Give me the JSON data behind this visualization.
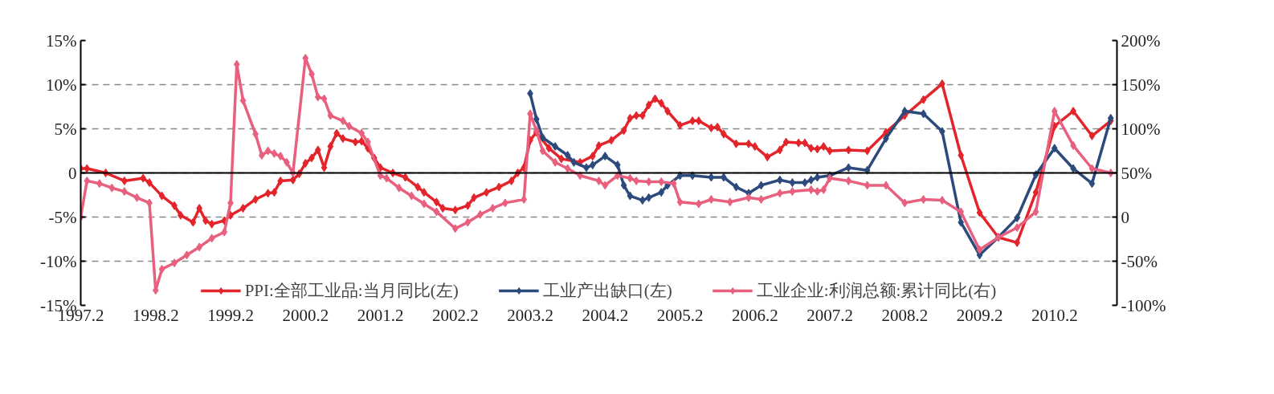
{
  "chart_data": {
    "type": "line",
    "marker": "diamond",
    "line_style": "solid",
    "grid": "y",
    "legend": "bottom",
    "xlim": [
      "1997-02",
      "2010-12"
    ],
    "xticks": [
      {
        "value": "1997-02",
        "label": "1997.2"
      },
      {
        "value": "1998-02",
        "label": "1998.2"
      },
      {
        "value": "1999-02",
        "label": "1999.2"
      },
      {
        "value": "2000-02",
        "label": "2000.2"
      },
      {
        "value": "2001-02",
        "label": "2001.2"
      },
      {
        "value": "2002-02",
        "label": "2002.2"
      },
      {
        "value": "2003-02",
        "label": "2003.2"
      },
      {
        "value": "2004-02",
        "label": "2004.2"
      },
      {
        "value": "2005-02",
        "label": "2005.2"
      },
      {
        "value": "2006-02",
        "label": "2006.2"
      },
      {
        "value": "2007-02",
        "label": "2007.2"
      },
      {
        "value": "2008-02",
        "label": "2008.2"
      },
      {
        "value": "2009-02",
        "label": "2009.2"
      },
      {
        "value": "2010-02",
        "label": "2010.2"
      }
    ],
    "ylim": [
      -15,
      15
    ],
    "yticks": [
      {
        "value": -15,
        "label": "-15%"
      },
      {
        "value": -10,
        "label": "-10%"
      },
      {
        "value": -5,
        "label": "-5%"
      },
      0,
      {
        "value": 5,
        "label": "5%"
      },
      {
        "value": 10,
        "label": "10%"
      },
      {
        "value": 15,
        "label": "15%"
      }
    ],
    "y2lim": [
      -100,
      200
    ],
    "y2ticks": [
      {
        "value": -100,
        "label": "-100%"
      },
      {
        "value": -50,
        "label": "-50%"
      },
      0,
      {
        "value": 50,
        "label": "50%"
      },
      {
        "value": 100,
        "label": "100%"
      },
      {
        "value": 150,
        "label": "150%"
      },
      {
        "value": 200,
        "label": "200%"
      }
    ],
    "ref_lines": [
      {
        "axis": "y",
        "value": 0,
        "color": "#000000"
      }
    ],
    "series": [
      {
        "name": "PPI:全部工业品:当月同比(左)",
        "color": "#e3242b",
        "axis": "y",
        "x": [
          "1997-02",
          "1997-03",
          "1997-06",
          "1997-09",
          "1997-12",
          "1998-01",
          "1998-03",
          "1998-05",
          "1998-06",
          "1998-08",
          "1998-09",
          "1998-10",
          "1998-11",
          "1999-01",
          "1999-02",
          "1999-04",
          "1999-06",
          "1999-08",
          "1999-09",
          "1999-10",
          "1999-12",
          "2000-01",
          "2000-02",
          "2000-03",
          "2000-04",
          "2000-05",
          "2000-06",
          "2000-07",
          "2000-08",
          "2000-10",
          "2000-11",
          "2000-12",
          "2001-01",
          "2001-02",
          "2001-04",
          "2001-06",
          "2001-08",
          "2001-09",
          "2001-11",
          "2001-12",
          "2002-02",
          "2002-04",
          "2002-05",
          "2002-07",
          "2002-09",
          "2002-11",
          "2002-12",
          "2003-01",
          "2003-02",
          "2003-03",
          "2003-05",
          "2003-07",
          "2003-10",
          "2003-12",
          "2004-01",
          "2004-03",
          "2004-05",
          "2004-06",
          "2004-07",
          "2004-08",
          "2004-09",
          "2004-10",
          "2004-11",
          "2004-12",
          "2005-02",
          "2005-04",
          "2005-05",
          "2005-07",
          "2005-08",
          "2005-09",
          "2005-11",
          "2006-01",
          "2006-02",
          "2006-04",
          "2006-06",
          "2006-07",
          "2006-09",
          "2006-10",
          "2006-11",
          "2006-12",
          "2007-01",
          "2007-02",
          "2007-05",
          "2007-08",
          "2007-11",
          "2008-02",
          "2008-05",
          "2008-08",
          "2008-11",
          "2009-02",
          "2009-05",
          "2009-08",
          "2009-11",
          "2010-02",
          "2010-05",
          "2010-08",
          "2010-11"
        ],
        "values": [
          0.5,
          0.5,
          0.0,
          -0.9,
          -0.6,
          -1.1,
          -2.6,
          -3.7,
          -4.8,
          -5.6,
          -4.0,
          -5.4,
          -5.8,
          -5.4,
          -4.8,
          -4.0,
          -3.0,
          -2.3,
          -2.2,
          -0.9,
          -0.8,
          -0.1,
          1.1,
          1.7,
          2.6,
          0.6,
          3.0,
          4.5,
          3.9,
          3.5,
          3.6,
          2.8,
          1.7,
          0.6,
          0.0,
          -0.5,
          -1.6,
          -2.2,
          -3.3,
          -4.0,
          -4.2,
          -3.7,
          -2.8,
          -2.2,
          -1.6,
          -0.9,
          0.0,
          0.6,
          3.7,
          4.6,
          2.8,
          1.6,
          1.2,
          1.9,
          3.1,
          3.7,
          4.8,
          6.2,
          6.5,
          6.5,
          7.7,
          8.4,
          7.9,
          7.0,
          5.4,
          5.9,
          5.9,
          5.1,
          5.2,
          4.4,
          3.3,
          3.3,
          3.0,
          1.8,
          2.6,
          3.5,
          3.4,
          3.4,
          2.8,
          2.7,
          3.0,
          2.5,
          2.6,
          2.5,
          4.6,
          6.5,
          8.3,
          10.1,
          2.0,
          -4.5,
          -7.3,
          -7.9,
          -2.2,
          5.3,
          7.0,
          4.2,
          5.9
        ]
      },
      {
        "name": "工业产出缺口(左)",
        "color": "#2c4a7c",
        "axis": "y",
        "x": [
          "2003-02",
          "2003-03",
          "2003-04",
          "2003-06",
          "2003-08",
          "2003-09",
          "2003-11",
          "2003-12",
          "2004-02",
          "2004-04",
          "2004-05",
          "2004-06",
          "2004-08",
          "2004-09",
          "2004-11",
          "2004-12",
          "2005-02",
          "2005-04",
          "2005-07",
          "2005-09",
          "2005-11",
          "2006-01",
          "2006-03",
          "2006-06",
          "2006-08",
          "2006-10",
          "2006-11",
          "2006-12",
          "2007-02",
          "2007-05",
          "2007-08",
          "2007-11",
          "2008-02",
          "2008-05",
          "2008-08",
          "2008-11",
          "2009-02",
          "2009-05",
          "2009-08",
          "2009-11",
          "2010-02",
          "2010-05",
          "2010-08",
          "2010-11"
        ],
        "values": [
          9.0,
          6.1,
          4.0,
          3.0,
          2.0,
          1.2,
          0.6,
          0.9,
          1.9,
          0.9,
          -1.4,
          -2.6,
          -3.1,
          -2.8,
          -2.2,
          -1.4,
          -0.3,
          -0.3,
          -0.5,
          -0.5,
          -1.6,
          -2.3,
          -1.4,
          -0.8,
          -1.1,
          -1.1,
          -0.8,
          -0.5,
          -0.3,
          0.6,
          0.3,
          3.9,
          7.0,
          6.7,
          4.7,
          -5.6,
          -9.3,
          -7.3,
          -5.1,
          -0.2,
          2.8,
          0.5,
          -1.2,
          6.2
        ]
      },
      {
        "name": "工业企业:利润总额:累计同比(右)",
        "color": "#e8607e",
        "axis": "y2",
        "x": [
          "1997-02",
          "1997-03",
          "1997-05",
          "1997-07",
          "1997-09",
          "1997-11",
          "1998-01",
          "1998-02",
          "1998-03",
          "1998-05",
          "1998-07",
          "1998-09",
          "1998-11",
          "1999-01",
          "1999-02",
          "1999-03",
          "1999-04",
          "1999-06",
          "1999-07",
          "1999-08",
          "1999-09",
          "1999-10",
          "1999-11",
          "1999-12",
          "2000-02",
          "2000-03",
          "2000-04",
          "2000-05",
          "2000-06",
          "2000-08",
          "2000-09",
          "2000-11",
          "2000-12",
          "2001-02",
          "2001-03",
          "2001-05",
          "2001-07",
          "2001-09",
          "2001-11",
          "2002-02",
          "2002-04",
          "2002-06",
          "2002-08",
          "2002-10",
          "2003-01",
          "2003-02",
          "2003-03",
          "2003-04",
          "2003-06",
          "2003-08",
          "2003-10",
          "2004-01",
          "2004-02",
          "2004-04",
          "2004-06",
          "2004-07",
          "2004-09",
          "2004-11",
          "2005-01",
          "2005-02",
          "2005-05",
          "2005-07",
          "2005-10",
          "2006-01",
          "2006-03",
          "2006-06",
          "2006-08",
          "2006-11",
          "2006-12",
          "2007-01",
          "2007-02",
          "2007-05",
          "2007-08",
          "2007-11",
          "2008-02",
          "2008-05",
          "2008-08",
          "2008-11",
          "2009-02",
          "2009-05",
          "2009-08",
          "2009-11",
          "2010-02",
          "2010-05",
          "2010-08",
          "2010-11"
        ],
        "values": [
          0,
          41,
          38,
          33,
          29,
          22,
          16,
          -83,
          -59,
          -52,
          -43,
          -34,
          -24,
          -17,
          16,
          173,
          132,
          94,
          70,
          75,
          72,
          69,
          62,
          50,
          180,
          162,
          136,
          134,
          115,
          109,
          103,
          95,
          85,
          47,
          44,
          33,
          24,
          15,
          6,
          -13,
          -6,
          3,
          10,
          16,
          20,
          117,
          98,
          75,
          62,
          55,
          47,
          41,
          36,
          47,
          44,
          41,
          40,
          40,
          38,
          17,
          15,
          20,
          17,
          22,
          20,
          27,
          29,
          31,
          29,
          31,
          44,
          41,
          36,
          36,
          16,
          20,
          19,
          6,
          -37,
          -23,
          -12,
          6,
          120,
          81,
          55,
          50
        ]
      }
    ]
  }
}
